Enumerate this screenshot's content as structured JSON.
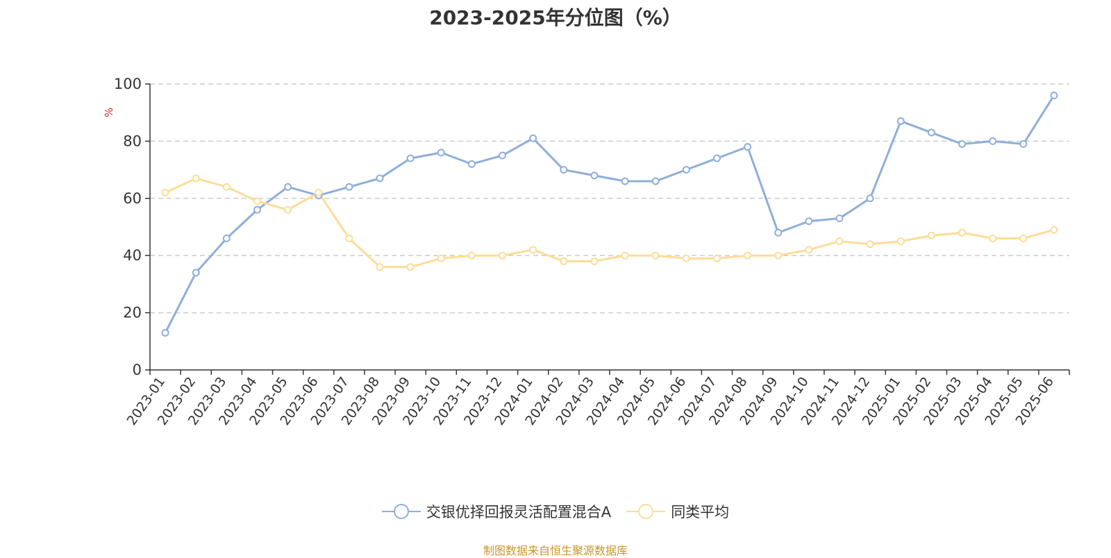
{
  "chart_data": {
    "type": "line",
    "title": "2023-2025年分位图（%）",
    "ylabel": "%",
    "xlabel": "",
    "ylim": [
      0,
      100
    ],
    "yticks": [
      0,
      20,
      40,
      60,
      80,
      100
    ],
    "grid": "horizontal-dashed",
    "legend_position": "bottom-center",
    "categories": [
      "2023-01",
      "2023-02",
      "2023-03",
      "2023-04",
      "2023-05",
      "2023-06",
      "2023-07",
      "2023-08",
      "2023-09",
      "2023-10",
      "2023-11",
      "2023-12",
      "2024-01",
      "2024-02",
      "2024-03",
      "2024-04",
      "2024-05",
      "2024-06",
      "2024-07",
      "2024-08",
      "2024-09",
      "2024-10",
      "2024-11",
      "2024-12",
      "2025-01",
      "2025-02",
      "2025-03",
      "2025-04",
      "2025-05",
      "2025-06"
    ],
    "series": [
      {
        "name": "交银优择回报灵活配置混合A",
        "color": "#8eaedb",
        "values": [
          13,
          34,
          46,
          56,
          64,
          61,
          64,
          67,
          74,
          76,
          72,
          75,
          81,
          70,
          68,
          66,
          66,
          70,
          74,
          78,
          48,
          52,
          53,
          60,
          87,
          83,
          79,
          80,
          79,
          96
        ]
      },
      {
        "name": "同类平均",
        "color": "#fddc97",
        "values": [
          62,
          67,
          64,
          59,
          56,
          62,
          46,
          36,
          36,
          39,
          40,
          40,
          42,
          38,
          38,
          40,
          40,
          39,
          39,
          40,
          40,
          42,
          45,
          44,
          45,
          47,
          48,
          46,
          46,
          49
        ]
      }
    ]
  },
  "source_text": "制图数据来自恒生聚源数据库"
}
